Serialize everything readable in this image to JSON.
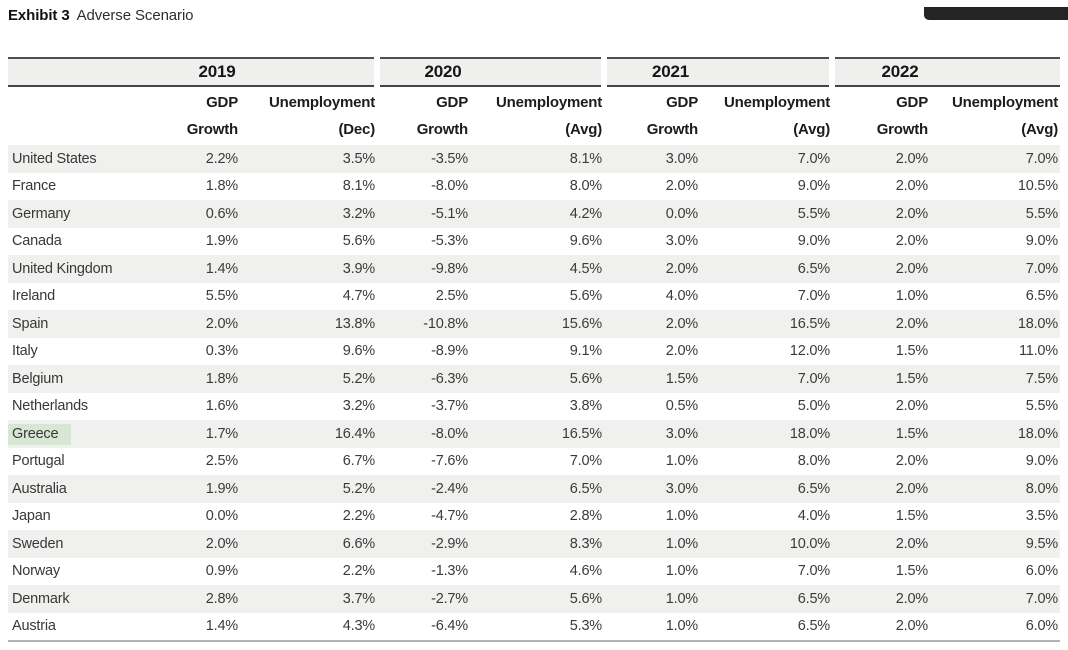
{
  "page": {
    "title_bold": "Exhibit 3",
    "title_rest": "Adverse Scenario"
  },
  "table": {
    "year_groups": [
      {
        "year": "2019",
        "gdp_header": [
          "GDP",
          "Growth"
        ],
        "unemp_header": [
          "Unemployment",
          "(Dec)"
        ]
      },
      {
        "year": "2020",
        "gdp_header": [
          "GDP",
          "Growth"
        ],
        "unemp_header": [
          "Unemployment",
          "(Avg)"
        ]
      },
      {
        "year": "2021",
        "gdp_header": [
          "GDP",
          "Growth"
        ],
        "unemp_header": [
          "Unemployment",
          "(Avg)"
        ]
      },
      {
        "year": "2022",
        "gdp_header": [
          "GDP",
          "Growth"
        ],
        "unemp_header": [
          "Unemployment",
          "(Avg)"
        ]
      }
    ],
    "rows": [
      {
        "country": "United States",
        "highlight": false,
        "values": [
          "2.2%",
          "3.5%",
          "-3.5%",
          "8.1%",
          "3.0%",
          "7.0%",
          "2.0%",
          "7.0%"
        ]
      },
      {
        "country": "France",
        "highlight": false,
        "values": [
          "1.8%",
          "8.1%",
          "-8.0%",
          "8.0%",
          "2.0%",
          "9.0%",
          "2.0%",
          "10.5%"
        ]
      },
      {
        "country": "Germany",
        "highlight": false,
        "values": [
          "0.6%",
          "3.2%",
          "-5.1%",
          "4.2%",
          "0.0%",
          "5.5%",
          "2.0%",
          "5.5%"
        ]
      },
      {
        "country": "Canada",
        "highlight": false,
        "values": [
          "1.9%",
          "5.6%",
          "-5.3%",
          "9.6%",
          "3.0%",
          "9.0%",
          "2.0%",
          "9.0%"
        ]
      },
      {
        "country": "United Kingdom",
        "highlight": false,
        "values": [
          "1.4%",
          "3.9%",
          "-9.8%",
          "4.5%",
          "2.0%",
          "6.5%",
          "2.0%",
          "7.0%"
        ]
      },
      {
        "country": "Ireland",
        "highlight": false,
        "values": [
          "5.5%",
          "4.7%",
          "2.5%",
          "5.6%",
          "4.0%",
          "7.0%",
          "1.0%",
          "6.5%"
        ]
      },
      {
        "country": "Spain",
        "highlight": false,
        "values": [
          "2.0%",
          "13.8%",
          "-10.8%",
          "15.6%",
          "2.0%",
          "16.5%",
          "2.0%",
          "18.0%"
        ]
      },
      {
        "country": "Italy",
        "highlight": false,
        "values": [
          "0.3%",
          "9.6%",
          "-8.9%",
          "9.1%",
          "2.0%",
          "12.0%",
          "1.5%",
          "11.0%"
        ]
      },
      {
        "country": "Belgium",
        "highlight": false,
        "values": [
          "1.8%",
          "5.2%",
          "-6.3%",
          "5.6%",
          "1.5%",
          "7.0%",
          "1.5%",
          "7.5%"
        ]
      },
      {
        "country": "Netherlands",
        "highlight": false,
        "values": [
          "1.6%",
          "3.2%",
          "-3.7%",
          "3.8%",
          "0.5%",
          "5.0%",
          "2.0%",
          "5.5%"
        ]
      },
      {
        "country": "Greece",
        "highlight": true,
        "values": [
          "1.7%",
          "16.4%",
          "-8.0%",
          "16.5%",
          "3.0%",
          "18.0%",
          "1.5%",
          "18.0%"
        ]
      },
      {
        "country": "Portugal",
        "highlight": false,
        "values": [
          "2.5%",
          "6.7%",
          "-7.6%",
          "7.0%",
          "1.0%",
          "8.0%",
          "2.0%",
          "9.0%"
        ]
      },
      {
        "country": "Australia",
        "highlight": false,
        "values": [
          "1.9%",
          "5.2%",
          "-2.4%",
          "6.5%",
          "3.0%",
          "6.5%",
          "2.0%",
          "8.0%"
        ]
      },
      {
        "country": "Japan",
        "highlight": false,
        "values": [
          "0.0%",
          "2.2%",
          "-4.7%",
          "2.8%",
          "1.0%",
          "4.0%",
          "1.5%",
          "3.5%"
        ]
      },
      {
        "country": "Sweden",
        "highlight": false,
        "values": [
          "2.0%",
          "6.6%",
          "-2.9%",
          "8.3%",
          "1.0%",
          "10.0%",
          "2.0%",
          "9.5%"
        ]
      },
      {
        "country": "Norway",
        "highlight": false,
        "values": [
          "0.9%",
          "2.2%",
          "-1.3%",
          "4.6%",
          "1.0%",
          "7.0%",
          "1.5%",
          "6.0%"
        ]
      },
      {
        "country": "Denmark",
        "highlight": false,
        "values": [
          "2.8%",
          "3.7%",
          "-2.7%",
          "5.6%",
          "1.0%",
          "6.5%",
          "2.0%",
          "7.0%"
        ]
      },
      {
        "country": "Austria",
        "highlight": false,
        "values": [
          "1.4%",
          "4.3%",
          "-6.4%",
          "5.3%",
          "1.0%",
          "6.5%",
          "2.0%",
          "6.0%"
        ]
      }
    ]
  },
  "colors": {
    "row_stripe": "#f0f0ee",
    "year_band": "#efefee",
    "greece_highlight": "#d8e7d3",
    "top_bar": "#242424",
    "dark_border": "#4f4f4f",
    "bottom_border": "#b3b3b3"
  }
}
